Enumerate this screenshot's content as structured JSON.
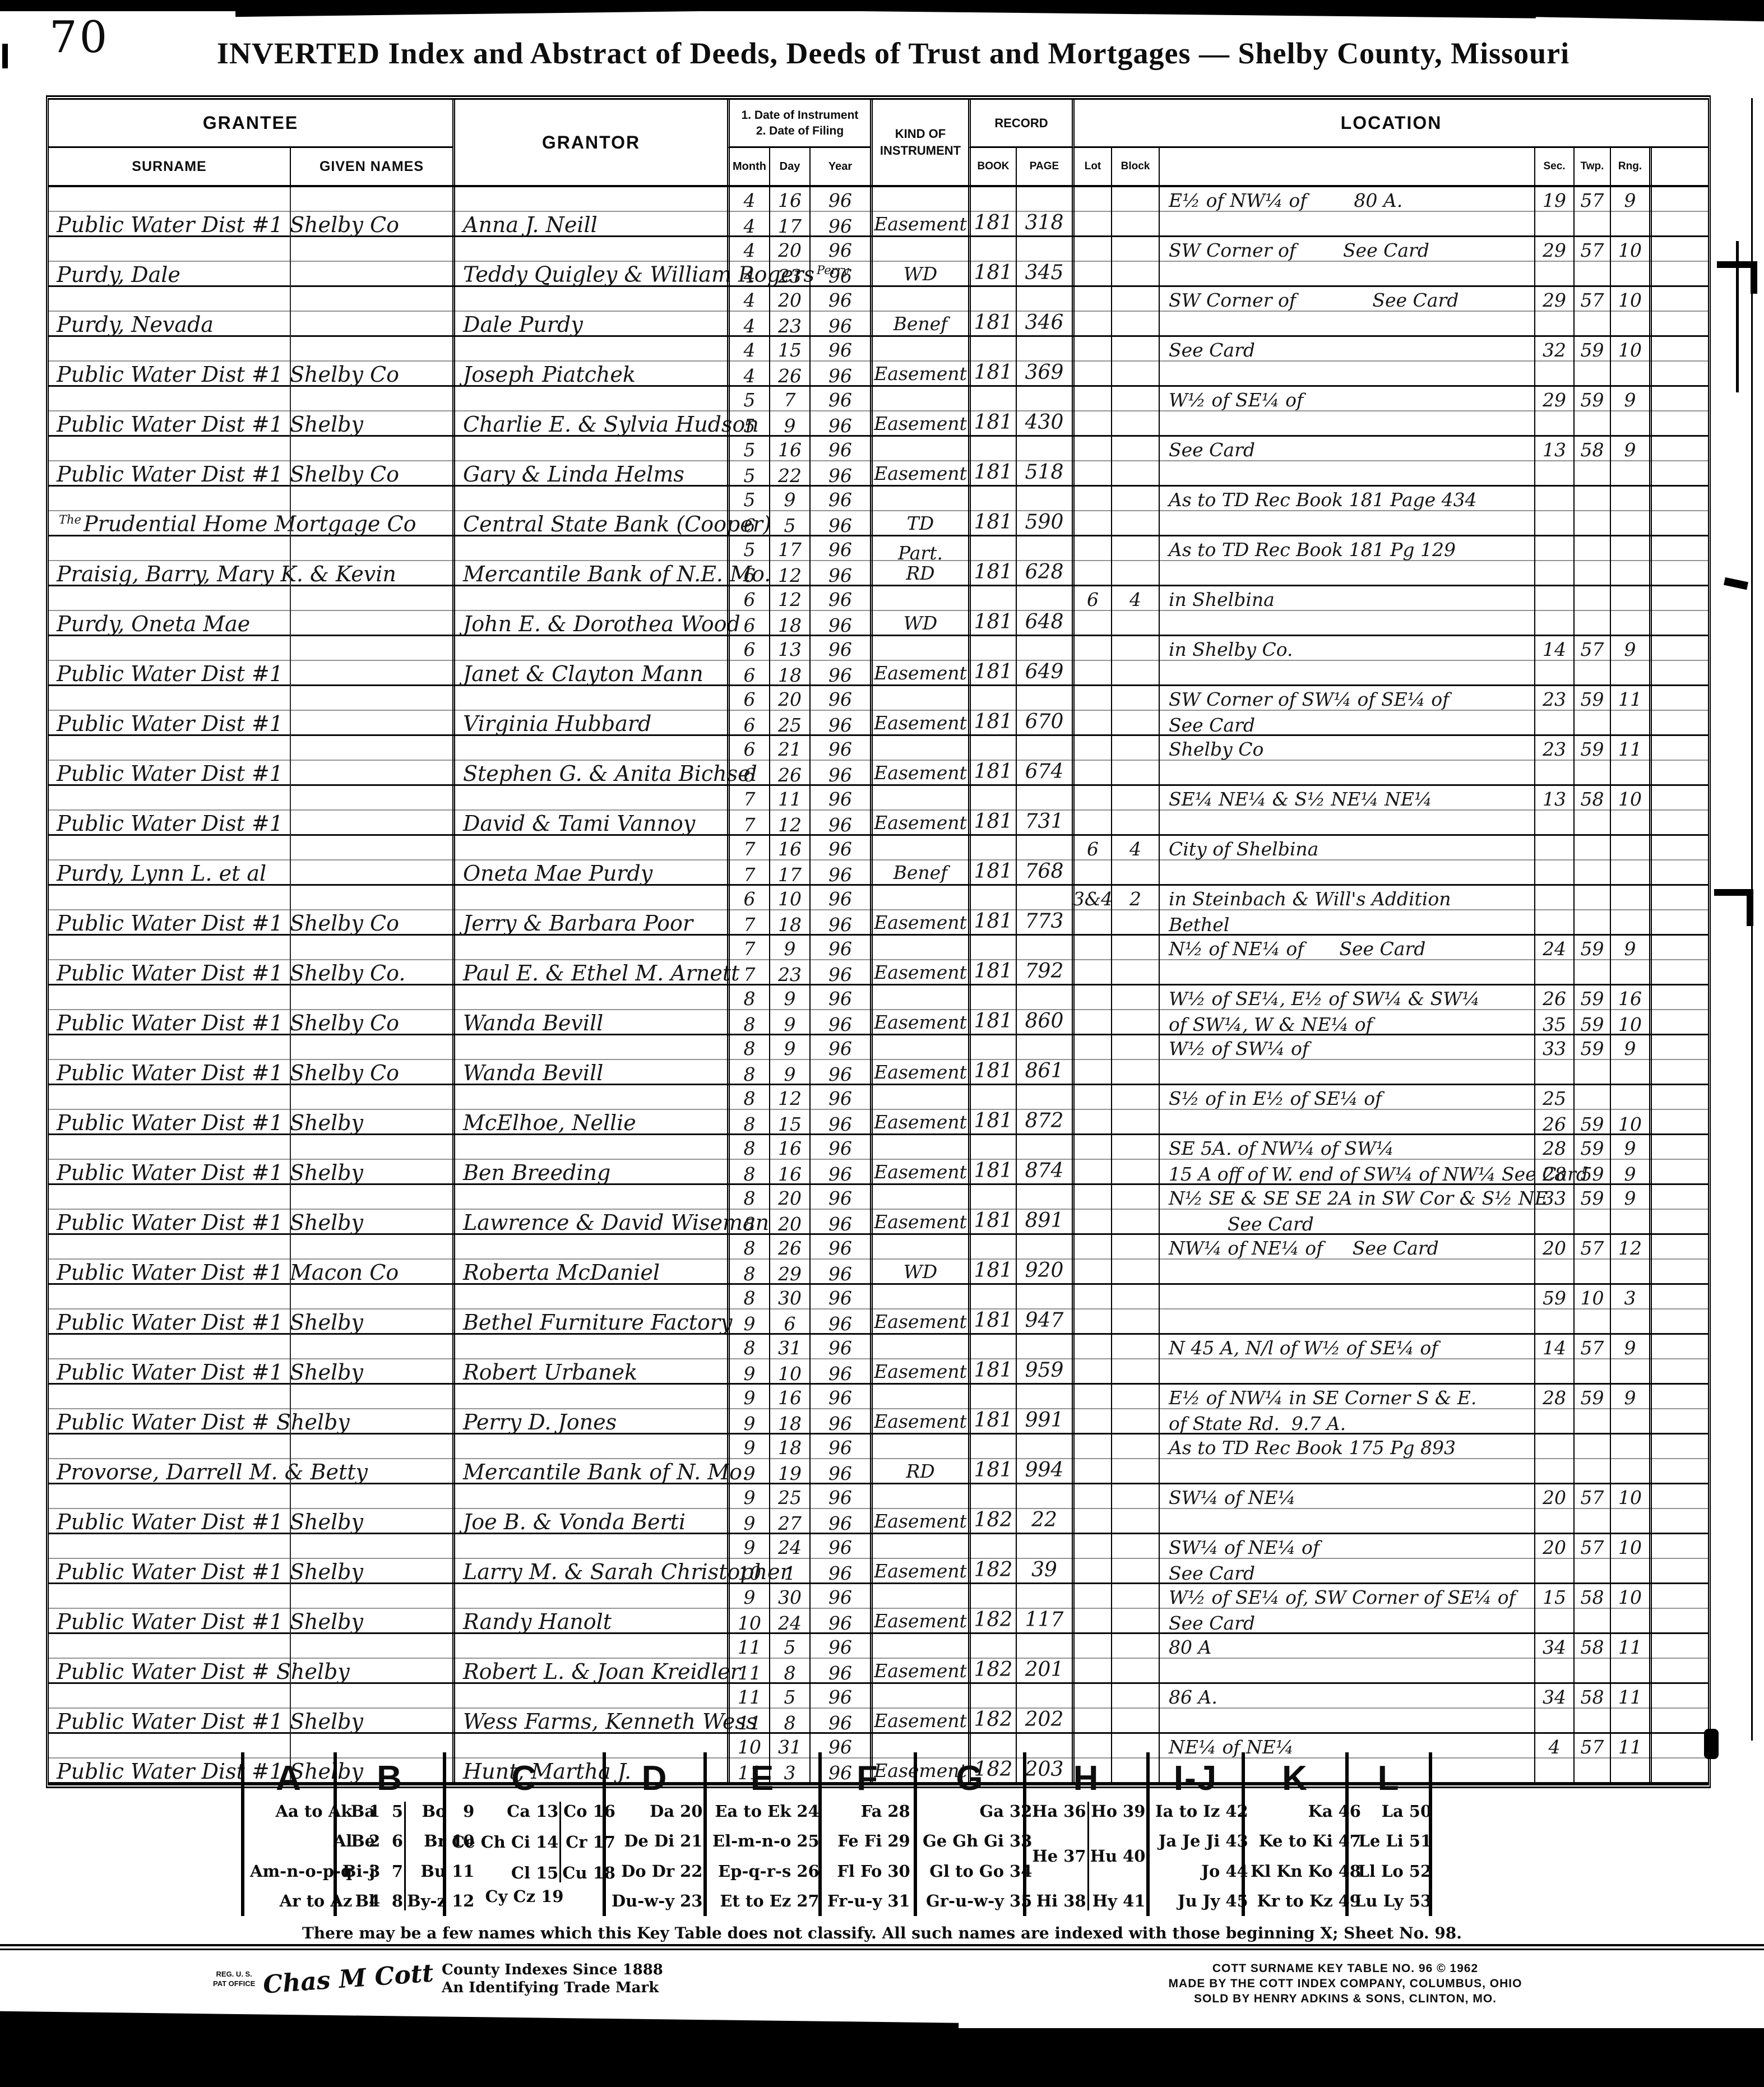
{
  "page": {
    "number": "70",
    "title": "INVERTED Index and Abstract of Deeds, Deeds of Trust and Mortgages — Shelby County, Missouri"
  },
  "table": {
    "headers": {
      "grantee": "GRANTEE",
      "surname": "SURNAME",
      "given_names": "GIVEN NAMES",
      "grantor": "GRANTOR",
      "date_line1": "1. Date of Instrument",
      "date_line2": "2. Date of Filing",
      "month": "Month",
      "day": "Day",
      "year": "Year",
      "kind1": "KIND OF",
      "kind2": "INSTRUMENT",
      "record": "RECORD",
      "book": "BOOK",
      "page": "PAGE",
      "lot": "Lot",
      "block": "Block",
      "location": "LOCATION",
      "sec": "Sec.",
      "twp": "Twp.",
      "rng": "Rng."
    },
    "rows": [
      {
        "g": "Public Water Dist #1 Shelby Co",
        "gr": "Anna J. Neill",
        "m1": "4",
        "d1": "16",
        "y1": "96",
        "m2": "4",
        "d2": "17",
        "y2": "96",
        "k": "Easement",
        "b": "181",
        "p": "318",
        "l1": "E½ of NW¼ of        80 A.",
        "s1": "19",
        "t1": "57",
        "rg1": "9"
      },
      {
        "g": "Purdy, Dale",
        "gr": "Teddy Quigley & William Rogers",
        "grn": "Perry",
        "m1": "4",
        "d1": "20",
        "y1": "96",
        "m2": "4",
        "d2": "23",
        "y2": "96",
        "k": "WD",
        "b": "181",
        "p": "345",
        "l1": "SW Corner of        See Card",
        "s1": "29",
        "t1": "57",
        "rg1": "10"
      },
      {
        "g": "Purdy, Nevada",
        "gr": "Dale Purdy",
        "m1": "4",
        "d1": "20",
        "y1": "96",
        "m2": "4",
        "d2": "23",
        "y2": "96",
        "k": "Benef",
        "b": "181",
        "p": "346",
        "l1": "SW Corner of             See Card",
        "s1": "29",
        "t1": "57",
        "rg1": "10"
      },
      {
        "g": "Public Water Dist #1 Shelby Co",
        "gr": "Joseph Piatchek",
        "m1": "4",
        "d1": "15",
        "y1": "96",
        "m2": "4",
        "d2": "26",
        "y2": "96",
        "k": "Easement",
        "b": "181",
        "p": "369",
        "l1": "See Card",
        "s1": "32",
        "t1": "59",
        "rg1": "10"
      },
      {
        "g": "Public Water Dist #1 Shelby",
        "gr": "Charlie E. & Sylvia Hudson",
        "m1": "5",
        "d1": "7",
        "y1": "96",
        "m2": "5",
        "d2": "9",
        "y2": "96",
        "k": "Easement",
        "b": "181",
        "p": "430",
        "l1": "W½ of SE¼ of",
        "s1": "29",
        "t1": "59",
        "rg1": "9"
      },
      {
        "g": "Public Water Dist #1 Shelby Co",
        "gr": "Gary & Linda Helms",
        "m1": "5",
        "d1": "16",
        "y1": "96",
        "m2": "5",
        "d2": "22",
        "y2": "96",
        "k": "Easement",
        "b": "181",
        "p": "518",
        "l1": "See Card",
        "s1": "13",
        "t1": "58",
        "rg1": "9"
      },
      {
        "g": "Prudential Home Mortgage Co",
        "gsup": "The",
        "gr": "Central State Bank (Cooper)",
        "m1": "5",
        "d1": "9",
        "y1": "96",
        "m2": "6",
        "d2": "5",
        "y2": "96",
        "k": "TD",
        "b": "181",
        "p": "590",
        "l1": "As to TD Rec Book 181 Page 434"
      },
      {
        "g": "Praisig, Barry, Mary K. & Kevin",
        "gr": "Mercantile Bank of N.E. Mo.",
        "m1": "5",
        "d1": "17",
        "y1": "96",
        "m2": "6",
        "d2": "12",
        "y2": "96",
        "k": "Part.\nRD",
        "b": "181",
        "p": "628",
        "l1": "As to TD Rec Book 181 Pg 129"
      },
      {
        "g": "Purdy, Oneta Mae",
        "gr": "John E. & Dorothea Wood",
        "m1": "6",
        "d1": "12",
        "y1": "96",
        "m2": "6",
        "d2": "18",
        "y2": "96",
        "k": "WD",
        "b": "181",
        "p": "648",
        "lot": "6",
        "blk": "4",
        "l1": "in Shelbina"
      },
      {
        "g": "Public Water Dist #1",
        "gr": "Janet & Clayton Mann",
        "m1": "6",
        "d1": "13",
        "y1": "96",
        "m2": "6",
        "d2": "18",
        "y2": "96",
        "k": "Easement",
        "b": "181",
        "p": "649",
        "l1": "in Shelby Co.",
        "s1": "14",
        "t1": "57",
        "rg1": "9"
      },
      {
        "g": "Public Water Dist #1",
        "gr": "Virginia Hubbard",
        "m1": "6",
        "d1": "20",
        "y1": "96",
        "m2": "6",
        "d2": "25",
        "y2": "96",
        "k": "Easement",
        "b": "181",
        "p": "670",
        "l1": "SW Corner of SW¼ of SE¼ of",
        "s1": "23",
        "t1": "59",
        "rg1": "11",
        "l2": "See Card"
      },
      {
        "g": "Public Water Dist #1",
        "gr": "Stephen G. & Anita Bichsel",
        "m1": "6",
        "d1": "21",
        "y1": "96",
        "m2": "6",
        "d2": "26",
        "y2": "96",
        "k": "Easement",
        "b": "181",
        "p": "674",
        "l1": "Shelby Co",
        "s1": "23",
        "t1": "59",
        "rg1": "11"
      },
      {
        "g": "Public Water Dist #1",
        "gr": "David & Tami Vannoy",
        "m1": "7",
        "d1": "11",
        "y1": "96",
        "m2": "7",
        "d2": "12",
        "y2": "96",
        "k": "Easement",
        "b": "181",
        "p": "731",
        "l1": "SE¼ NE¼ & S½ NE¼ NE¼",
        "s1": "13",
        "t1": "58",
        "rg1": "10"
      },
      {
        "g": "Purdy, Lynn L. et al",
        "gr": "Oneta Mae Purdy",
        "m1": "7",
        "d1": "16",
        "y1": "96",
        "m2": "7",
        "d2": "17",
        "y2": "96",
        "k": "Benef",
        "b": "181",
        "p": "768",
        "lot": "6",
        "blk": "4",
        "l1": "City of Shelbina"
      },
      {
        "g": "Public Water Dist #1 Shelby Co",
        "gr": "Jerry & Barbara Poor",
        "m1": "6",
        "d1": "10",
        "y1": "96",
        "m2": "7",
        "d2": "18",
        "y2": "96",
        "k": "Easement",
        "b": "181",
        "p": "773",
        "lot": "3&4",
        "blk": "2",
        "l1": "in Steinbach & Will's Addition",
        "l2": "Bethel"
      },
      {
        "g": "Public Water Dist #1 Shelby Co.",
        "gr": "Paul E. & Ethel M. Arnett",
        "m1": "7",
        "d1": "9",
        "y1": "96",
        "m2": "7",
        "d2": "23",
        "y2": "96",
        "k": "Easement",
        "b": "181",
        "p": "792",
        "l1": "N½ of NE¼ of      See Card",
        "s1": "24",
        "t1": "59",
        "rg1": "9"
      },
      {
        "g": "Public Water Dist #1 Shelby Co",
        "gr": "Wanda Bevill",
        "m1": "8",
        "d1": "9",
        "y1": "96",
        "m2": "8",
        "d2": "9",
        "y2": "96",
        "k": "Easement",
        "b": "181",
        "p": "860",
        "l1": "W½ of SE¼, E½ of SW¼ & SW¼",
        "s1": "26",
        "t1": "59",
        "rg1": "16",
        "l2": "of SW¼, W & NE¼ of",
        "s2": "35",
        "t2": "59",
        "rg2": "10"
      },
      {
        "g": "Public Water Dist #1 Shelby Co",
        "gr": "Wanda Bevill",
        "m1": "8",
        "d1": "9",
        "y1": "96",
        "m2": "8",
        "d2": "9",
        "y2": "96",
        "k": "Easement",
        "b": "181",
        "p": "861",
        "l1": "W½ of SW¼ of",
        "s1": "33",
        "t1": "59",
        "rg1": "9"
      },
      {
        "g": "Public Water Dist #1 Shelby",
        "gr": "McElhoe, Nellie",
        "m1": "8",
        "d1": "12",
        "y1": "96",
        "m2": "8",
        "d2": "15",
        "y2": "96",
        "k": "Easement",
        "b": "181",
        "p": "872",
        "l1": "S½ of in E½ of SE¼ of",
        "s1": "25",
        "l2": "",
        "s2": "26",
        "t2": "59",
        "rg2": "10"
      },
      {
        "g": "Public Water Dist #1 Shelby",
        "gr": "Ben Breeding",
        "m1": "8",
        "d1": "16",
        "y1": "96",
        "m2": "8",
        "d2": "16",
        "y2": "96",
        "k": "Easement",
        "b": "181",
        "p": "874",
        "l1": "SE 5A. of NW¼ of SW¼",
        "s1": "28",
        "t1": "59",
        "rg1": "9",
        "l2": "15 A off of W. end of SW¼ of NW¼ See Card",
        "s2": "28",
        "t2": "59",
        "rg2": "9"
      },
      {
        "g": "Public Water Dist #1 Shelby",
        "gr": "Lawrence & David Wiseman",
        "m1": "8",
        "d1": "20",
        "y1": "96",
        "m2": "8",
        "d2": "20",
        "y2": "96",
        "k": "Easement",
        "b": "181",
        "p": "891",
        "l1": "N½ SE & SE SE 2A in SW Cor & S½ NE",
        "s1": "33",
        "t1": "59",
        "rg1": "9",
        "l2": "          See Card"
      },
      {
        "g": "Public Water Dist #1 Macon Co",
        "gr": "Roberta McDaniel",
        "m1": "8",
        "d1": "26",
        "y1": "96",
        "m2": "8",
        "d2": "29",
        "y2": "96",
        "k": "WD",
        "b": "181",
        "p": "920",
        "l1": "NW¼ of NE¼ of     See Card",
        "s1": "20",
        "t1": "57",
        "rg1": "12"
      },
      {
        "g": "Public Water Dist #1 Shelby",
        "gr": "Bethel Furniture Factory",
        "m1": "8",
        "d1": "30",
        "y1": "96",
        "m2": "9",
        "d2": "6",
        "y2": "96",
        "k": "Easement",
        "b": "181",
        "p": "947",
        "s1": "59",
        "t1": "10",
        "rg1": "3"
      },
      {
        "g": "Public Water Dist #1 Shelby",
        "gr": "Robert Urbanek",
        "m1": "8",
        "d1": "31",
        "y1": "96",
        "m2": "9",
        "d2": "10",
        "y2": "96",
        "k": "Easement",
        "b": "181",
        "p": "959",
        "l1": "N 45 A, N/l of W½ of SE¼ of",
        "s1": "14",
        "t1": "57",
        "rg1": "9"
      },
      {
        "g": "Public Water Dist # Shelby",
        "gr": "Perry D. Jones",
        "m1": "9",
        "d1": "16",
        "y1": "96",
        "m2": "9",
        "d2": "18",
        "y2": "96",
        "k": "Easement",
        "b": "181",
        "p": "991",
        "l1": "E½ of NW¼ in SE Corner S & E.",
        "s1": "28",
        "t1": "59",
        "rg1": "9",
        "l2": "of State Rd.  9.7 A."
      },
      {
        "g": "Provorse, Darrell M. & Betty",
        "gr": "Mercantile Bank of N. Mo.",
        "m1": "9",
        "d1": "18",
        "y1": "96",
        "m2": "9",
        "d2": "19",
        "y2": "96",
        "k": "RD",
        "b": "181",
        "p": "994",
        "l1": "As to TD Rec Book 175 Pg 893"
      },
      {
        "g": "Public Water Dist #1 Shelby",
        "gr": "Joe B. & Vonda Berti",
        "m1": "9",
        "d1": "25",
        "y1": "96",
        "m2": "9",
        "d2": "27",
        "y2": "96",
        "k": "Easement",
        "b": "182",
        "p": "22",
        "l1": "SW¼ of NE¼",
        "s1": "20",
        "t1": "57",
        "rg1": "10"
      },
      {
        "g": "Public Water Dist #1 Shelby",
        "gr": "Larry M. & Sarah Christopher",
        "m1": "9",
        "d1": "24",
        "y1": "96",
        "m2": "10",
        "d2": "1",
        "y2": "96",
        "k": "Easement",
        "b": "182",
        "p": "39",
        "l1": "SW¼ of NE¼ of",
        "s1": "20",
        "t1": "57",
        "rg1": "10",
        "l2": "See Card"
      },
      {
        "g": "Public Water Dist #1 Shelby",
        "gr": "Randy Hanolt",
        "m1": "9",
        "d1": "30",
        "y1": "96",
        "m2": "10",
        "d2": "24",
        "y2": "96",
        "k": "Easement",
        "b": "182",
        "p": "117",
        "l1": "W½ of SE¼ of, SW Corner of SE¼ of",
        "s1": "15",
        "t1": "58",
        "rg1": "10",
        "l2": "See Card"
      },
      {
        "g": "Public Water Dist # Shelby",
        "gr": "Robert L. & Joan Kreidler",
        "m1": "11",
        "d1": "5",
        "y1": "96",
        "m2": "11",
        "d2": "8",
        "y2": "96",
        "k": "Easement",
        "b": "182",
        "p": "201",
        "l1": "80 A",
        "s1": "34",
        "t1": "58",
        "rg1": "11"
      },
      {
        "g": "Public Water Dist #1 Shelby",
        "gr": "Wess Farms, Kenneth Wess",
        "m1": "11",
        "d1": "5",
        "y1": "96",
        "m2": "11",
        "d2": "8",
        "y2": "96",
        "k": "Easement",
        "b": "182",
        "p": "202",
        "l1": "86 A.",
        "s1": "34",
        "t1": "58",
        "rg1": "11"
      },
      {
        "g": "Public Water Dist #1 Shelby",
        "gr": "Hunt, Martha J.",
        "m1": "10",
        "d1": "31",
        "y1": "96",
        "m2": "11",
        "d2": "3",
        "y2": "96",
        "k": "Easement",
        "b": "182",
        "p": "203",
        "l1": "NE¼ of NE¼",
        "s1": "4",
        "t1": "57",
        "rg1": "11"
      }
    ]
  },
  "key_table": {
    "groups": [
      {
        "letter": "A",
        "cols": [
          [
            {
              "t": "Aa to Ak",
              "n": "1"
            },
            {
              "t": "Al",
              "n": "2"
            },
            {
              "t": "Am-n-o-p-q",
              "n": "3"
            },
            {
              "t": "Ar to Az",
              "n": "4"
            }
          ]
        ]
      },
      {
        "letter": "B",
        "cols": [
          [
            {
              "t": "Ba",
              "n": "5"
            },
            {
              "t": "Be",
              "n": "6"
            },
            {
              "t": "Bi-j",
              "n": "7"
            },
            {
              "t": "Bl",
              "n": "8"
            }
          ],
          [
            {
              "t": "Bo",
              "n": "9"
            },
            {
              "t": "Br",
              "n": "10"
            },
            {
              "t": "Bu",
              "n": "11"
            },
            {
              "t": "By-z",
              "n": "12"
            }
          ]
        ]
      },
      {
        "letter": "C",
        "cols": [
          [
            {
              "t": "Ca",
              "n": "13"
            },
            {
              "t": "Ce Ch Ci",
              "n": "14"
            },
            {
              "t": "Cl",
              "n": "15"
            }
          ],
          [
            {
              "t": "Co",
              "n": "16"
            },
            {
              "t": "Cr",
              "n": "17"
            },
            {
              "t": "Cu",
              "n": "18"
            }
          ]
        ],
        "span": {
          "t": "Cy Cz",
          "n": "19"
        }
      },
      {
        "letter": "D",
        "cols": [
          [
            {
              "t": "Da",
              "n": "20"
            },
            {
              "t": "De Di",
              "n": "21"
            },
            {
              "t": "Do Dr",
              "n": "22"
            },
            {
              "t": "Du-w-y",
              "n": "23"
            }
          ]
        ]
      },
      {
        "letter": "E",
        "cols": [
          [
            {
              "t": "Ea to Ek",
              "n": "24"
            },
            {
              "t": "El-m-n-o",
              "n": "25"
            },
            {
              "t": "Ep-q-r-s",
              "n": "26"
            },
            {
              "t": "Et to Ez",
              "n": "27"
            }
          ]
        ]
      },
      {
        "letter": "F",
        "cols": [
          [
            {
              "t": "Fa",
              "n": "28"
            },
            {
              "t": "Fe Fi",
              "n": "29"
            },
            {
              "t": "Fl Fo",
              "n": "30"
            },
            {
              "t": "Fr-u-y",
              "n": "31"
            }
          ]
        ]
      },
      {
        "letter": "G",
        "cols": [
          [
            {
              "t": "Ga",
              "n": "32"
            },
            {
              "t": "Ge Gh Gi",
              "n": "33"
            },
            {
              "t": "Gl to Go",
              "n": "34"
            },
            {
              "t": "Gr-u-w-y",
              "n": "35"
            }
          ]
        ]
      },
      {
        "letter": "H",
        "cols": [
          [
            {
              "t": "Ha",
              "n": "36"
            },
            {
              "t": "He",
              "n": "37"
            },
            {
              "t": "Hi",
              "n": "38"
            }
          ],
          [
            {
              "t": "Ho",
              "n": "39"
            },
            {
              "t": "Hu",
              "n": "40"
            },
            {
              "t": "Hy",
              "n": "41"
            }
          ]
        ]
      },
      {
        "letter": "I-J",
        "cols": [
          [
            {
              "t": "Ia to Iz",
              "n": "42"
            },
            {
              "t": "Ja Je Ji",
              "n": "43"
            },
            {
              "t": "Jo",
              "n": "44"
            },
            {
              "t": "Ju Jy",
              "n": "45"
            }
          ]
        ]
      },
      {
        "letter": "K",
        "cols": [
          [
            {
              "t": "Ka",
              "n": "46"
            },
            {
              "t": "Ke to Ki",
              "n": "47"
            },
            {
              "t": "Kl Kn Ko",
              "n": "48"
            },
            {
              "t": "Kr to Kz",
              "n": "49"
            }
          ]
        ]
      },
      {
        "letter": "L",
        "cols": [
          [
            {
              "t": "La",
              "n": "50"
            },
            {
              "t": "Le Li",
              "n": "51"
            },
            {
              "t": "Ll Lo",
              "n": "52"
            },
            {
              "t": "Lu Ly",
              "n": "53"
            }
          ]
        ]
      }
    ]
  },
  "footer": {
    "key_note": "There may be a few names which this Key Table does not classify.    All such names are indexed with those beginning X; Sheet No. 98.",
    "trademark": {
      "reg1": "REG. U. S.",
      "reg2": "PAT OFFICE",
      "script": "Chas M Cott",
      "line1": "County Indexes Since 1888",
      "line2": "An Identifying Trade Mark"
    },
    "cott": {
      "line1": "COTT SURNAME KEY TABLE NO. 96 © 1962",
      "line2": "MADE BY THE COTT INDEX COMPANY, COLUMBUS, OHIO",
      "line3": "SOLD BY HENRY ADKINS & SONS, CLINTON, MO."
    }
  }
}
